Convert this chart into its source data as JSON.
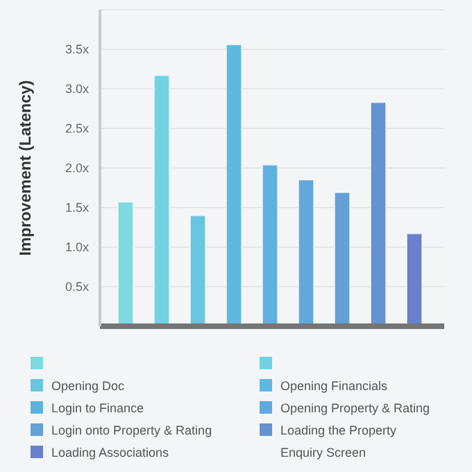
{
  "chart_data": {
    "type": "bar",
    "ylabel": "Improvement (Latency)",
    "categories": [
      null
    ],
    "series": [
      {
        "color": "#7fd9e0",
        "values": [
          1.57
        ]
      },
      {
        "color": "#72d1e2",
        "values": [
          3.17
        ]
      },
      {
        "name": "Opening Doc",
        "color": "#68c6de",
        "values": [
          1.4
        ]
      },
      {
        "name": "Opening Financials",
        "color": "#5fb8de",
        "values": [
          3.56
        ]
      },
      {
        "name": "Login to Finance",
        "color": "#60b0de",
        "values": [
          2.04
        ]
      },
      {
        "name": "Opening Property & Rating",
        "color": "#62a8dc",
        "values": [
          1.85
        ]
      },
      {
        "name": "Login onto Property & Rating",
        "color": "#64a0d6",
        "values": [
          1.69
        ]
      },
      {
        "name": "Loading the Property Enquiry Screen",
        "color": "#6592d0",
        "values": [
          2.83
        ]
      },
      {
        "name": "Loading Associations",
        "color": "#6a80cc",
        "values": [
          1.17
        ]
      }
    ],
    "ylim": [
      0,
      4
    ],
    "yticks": [
      {
        "value": 0,
        "label": null
      },
      {
        "value": 0.5,
        "label": "0.5x"
      },
      {
        "value": 1,
        "label": "1.0x"
      },
      {
        "value": 1.5,
        "label": "1.5x"
      },
      {
        "value": 2,
        "label": "2.0x"
      },
      {
        "value": 2.5,
        "label": "2.5x"
      },
      {
        "value": 3,
        "label": "3.0x"
      },
      {
        "value": 3.5,
        "label": "3.5x"
      },
      {
        "value": 4,
        "label": null
      }
    ],
    "grid": "y",
    "legend": "bottom",
    "tick_labels": "y"
  }
}
